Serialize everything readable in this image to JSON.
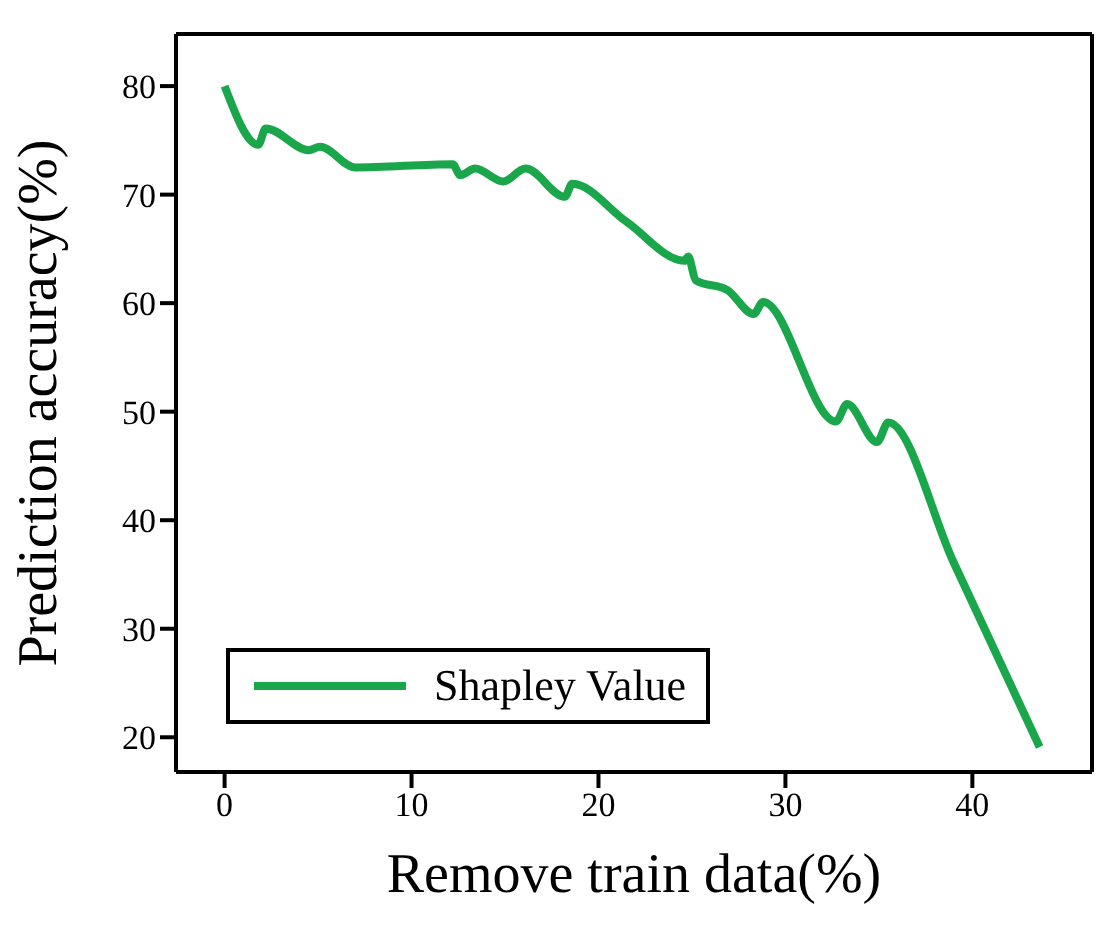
{
  "chart_data": {
    "type": "line",
    "xlabel": "Remove train data(%)",
    "ylabel": "Prediction accuracy(%)",
    "x": [
      0,
      1.8,
      2.2,
      4.5,
      5.1,
      7,
      12.2,
      12.6,
      13.4,
      14.9,
      16.1,
      18.2,
      18.6,
      21.5,
      24.6,
      24.8,
      25.2,
      26.9,
      28.3,
      28.8,
      32.7,
      33.3,
      34.9,
      35.5,
      39,
      43.6
    ],
    "series": [
      {
        "name": "Shapley Value",
        "color": "#1aa64a",
        "values": [
          80,
          74.6,
          76.1,
          74.1,
          74.4,
          72.5,
          72.8,
          71.8,
          72.4,
          71.2,
          72.4,
          69.8,
          71,
          67.5,
          63.9,
          64.3,
          62.1,
          61.2,
          59,
          60.1,
          49.1,
          50.7,
          47.2,
          49,
          36.1,
          19.1
        ]
      }
    ],
    "xlim": [
      -2.6,
      46.4
    ],
    "ylim": [
      16.8,
      84.8
    ],
    "xticks": [
      0,
      10,
      20,
      30,
      40
    ],
    "yticks": [
      20,
      30,
      40,
      50,
      60,
      70,
      80
    ],
    "legend": "bottom left",
    "grid": false,
    "marker": "none",
    "line_style": "solid"
  }
}
